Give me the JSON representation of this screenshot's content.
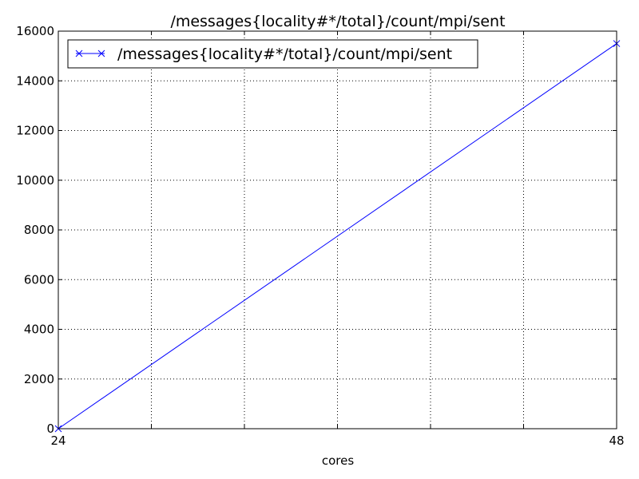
{
  "chart_data": {
    "type": "line",
    "title": "/messages{locality#*/total}/count/mpi/sent",
    "xlabel": "cores",
    "ylabel": "",
    "xlim": [
      24,
      48
    ],
    "ylim": [
      0,
      16000
    ],
    "x_tick_labels": [
      "24",
      "48"
    ],
    "x_tick_values": [
      24,
      48
    ],
    "x_grid_values": [
      24,
      28,
      32,
      36,
      40,
      44,
      48
    ],
    "y_ticks": [
      0,
      2000,
      4000,
      6000,
      8000,
      10000,
      12000,
      14000,
      16000
    ],
    "grid": true,
    "legend_position": "top-left",
    "series": [
      {
        "name": "/messages{locality#*/total}/count/mpi/sent",
        "color": "#0000ff",
        "marker": "x",
        "x": [
          24,
          48
        ],
        "y": [
          0,
          15500
        ]
      }
    ]
  }
}
